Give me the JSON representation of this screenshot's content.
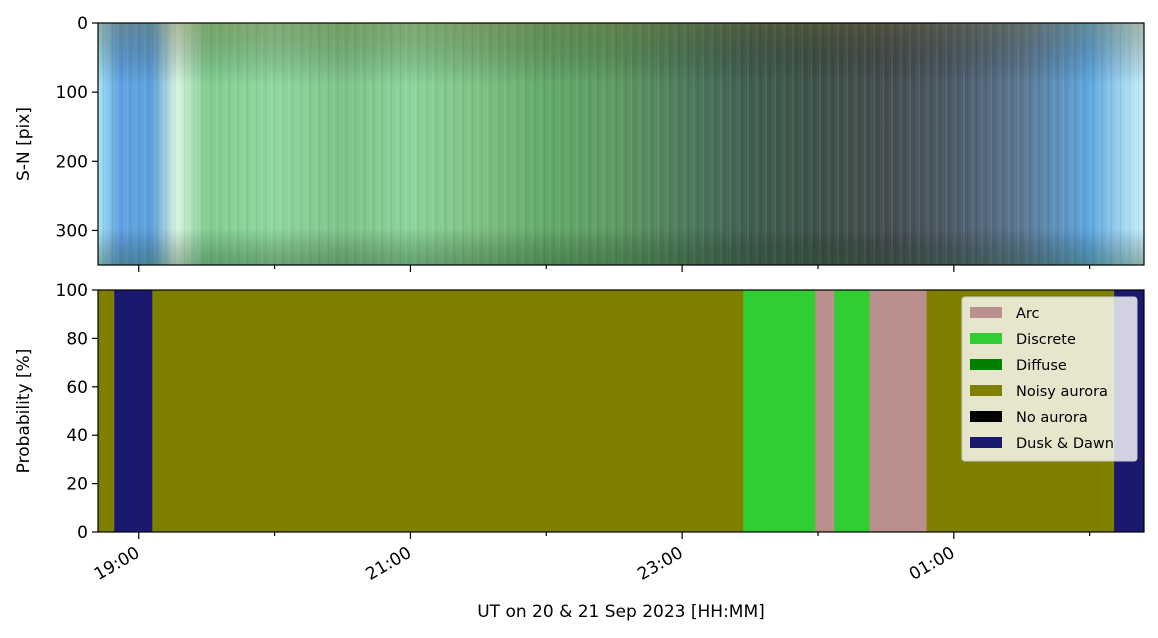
{
  "chart_data": [
    {
      "type": "heatmap",
      "description_source": "keogram",
      "ylabel": "S-N [pix]",
      "yticks": [
        0,
        100,
        200,
        300
      ],
      "ylim": [
        350,
        0
      ],
      "xlim_hours": [
        18.7,
        26.4
      ],
      "x_ticks_shared": true,
      "color_profile_by_hour": [
        {
          "t": 18.7,
          "color": "#a6e6f6"
        },
        {
          "t": 18.85,
          "color": "#5fa2e2"
        },
        {
          "t": 19.1,
          "color": "#5b9fd9"
        },
        {
          "t": 19.28,
          "color": "#d8f4e0"
        },
        {
          "t": 19.5,
          "color": "#7fcd90"
        },
        {
          "t": 20.0,
          "color": "#8ed69e"
        },
        {
          "t": 20.5,
          "color": "#7dc289"
        },
        {
          "t": 21.0,
          "color": "#8ad39a"
        },
        {
          "t": 21.5,
          "color": "#7cbf82"
        },
        {
          "t": 22.0,
          "color": "#62a86a"
        },
        {
          "t": 22.5,
          "color": "#5c9a62"
        },
        {
          "t": 23.0,
          "color": "#4d7b5a"
        },
        {
          "t": 23.5,
          "color": "#3f5d50"
        },
        {
          "t": 24.0,
          "color": "#3d5148"
        },
        {
          "t": 24.5,
          "color": "#434c4e"
        },
        {
          "t": 25.0,
          "color": "#4b5a66"
        },
        {
          "t": 25.5,
          "color": "#5a7690"
        },
        {
          "t": 26.0,
          "color": "#5da6df"
        },
        {
          "t": 26.4,
          "color": "#c8f0fb"
        }
      ]
    },
    {
      "type": "area",
      "stacked": true,
      "ylabel": "Probability [%]",
      "ylim": [
        0,
        100
      ],
      "yticks": [
        0,
        20,
        40,
        60,
        80,
        100
      ],
      "xlabel": "UT on 20 & 21 Sep 2023 [HH:MM]",
      "xlim_hours": [
        18.7,
        26.4
      ],
      "xtick_major_hours": [
        19,
        21,
        23,
        25
      ],
      "xtick_major_labels": [
        "19:00",
        "21:00",
        "23:00",
        "01:00"
      ],
      "xtick_minor_hours": [
        20,
        22,
        24,
        26
      ],
      "legend_position": "top-right",
      "series": [
        {
          "name": "Arc",
          "color": "#bc8f8f"
        },
        {
          "name": "Discrete",
          "color": "#32cd32"
        },
        {
          "name": "Diffuse",
          "color": "#008000"
        },
        {
          "name": "Noisy aurora",
          "color": "#808000"
        },
        {
          "name": "No aurora",
          "color": "#000000"
        },
        {
          "name": "Dusk & Dawn",
          "color": "#191970"
        }
      ],
      "segments": [
        {
          "start": 18.7,
          "end": 18.82,
          "class": "Noisy aurora"
        },
        {
          "start": 18.82,
          "end": 19.1,
          "class": "Dusk & Dawn"
        },
        {
          "start": 19.1,
          "end": 23.45,
          "class": "Noisy aurora"
        },
        {
          "start": 23.45,
          "end": 23.98,
          "class": "Discrete"
        },
        {
          "start": 23.98,
          "end": 24.12,
          "class": "Arc"
        },
        {
          "start": 24.12,
          "end": 24.38,
          "class": "Discrete"
        },
        {
          "start": 24.38,
          "end": 24.8,
          "class": "Arc"
        },
        {
          "start": 24.8,
          "end": 26.18,
          "class": "Noisy aurora"
        },
        {
          "start": 26.18,
          "end": 26.4,
          "class": "Dusk & Dawn"
        }
      ]
    }
  ]
}
